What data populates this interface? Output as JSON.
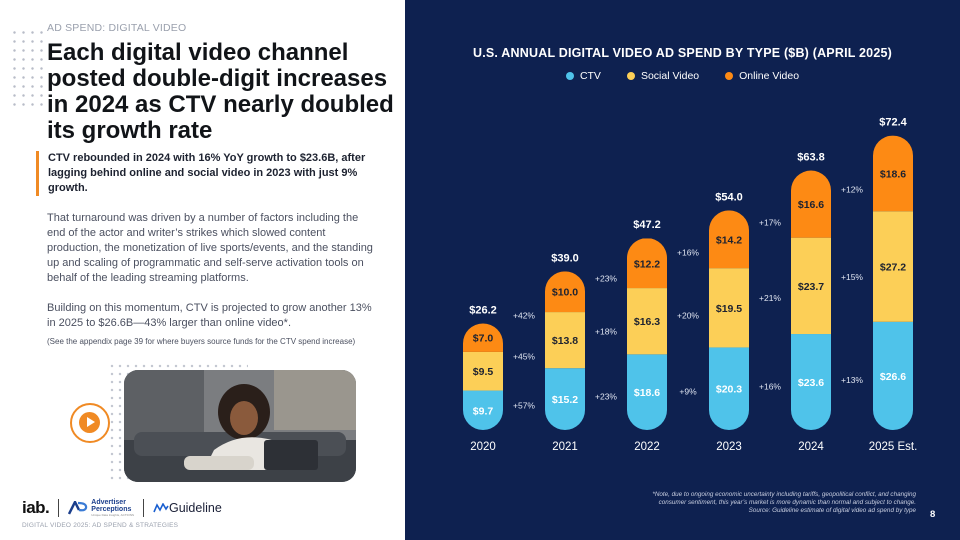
{
  "left": {
    "eyebrow": "AD SPEND: DIGITAL VIDEO",
    "headline": "Each digital video channel posted double-digit increases in 2024 as CTV nearly doubled its growth rate",
    "callout": "CTV rebounded in 2024 with 16% YoY growth to $23.6B, after lagging behind online and social video in 2023 with just 9% growth.",
    "para1": "That turnaround was driven by a number of factors including the end of the actor and writer’s strikes which slowed content production, the monetization of live sports/events, and the standing up and scaling of programmatic and self-serve activation tools on behalf of the leading streaming platforms.",
    "para2": "Building on this momentum, CTV is projected to grow another 13% in 2025 to $26.6B—43% larger than online video*.",
    "note": "(See the appendix page 39 for where buyers source funds for the CTV spend increase)",
    "logos": {
      "iab": "iab.",
      "ap_line1": "Advertiser",
      "ap_line2": "Perceptions",
      "ap_sub": "Unique Data Insights, ACTIONS",
      "guideline": "Guideline"
    },
    "footer": "DIGITAL VIDEO 2025: AD SPEND & STRATEGIES"
  },
  "right": {
    "footnote_1": "*Note, due to ongoing economic uncertainty including tariffs, geopolitical conflict, and changing",
    "footnote_2": "consumer sentiment, this year’s market is more dynamic than normal and subject to change.",
    "footnote_3": "Source: Guideline estimate of digital video ad spend by type",
    "page_number": "8"
  },
  "colors": {
    "ctv": "#4fc3ea",
    "social": "#fccf57",
    "online": "#fd8a14",
    "panel": "#0e2150",
    "accent": "#f08a24"
  },
  "chart_data": {
    "type": "bar",
    "stacked": true,
    "title": "U.S. ANNUAL DIGITAL VIDEO AD SPEND BY TYPE ($B) (APRIL 2025)",
    "categories": [
      "2020",
      "2021",
      "2022",
      "2023",
      "2024",
      "2025 Est."
    ],
    "series": [
      {
        "name": "CTV",
        "values": [
          9.7,
          15.2,
          18.6,
          20.3,
          23.6,
          26.6
        ],
        "labels": [
          "$9.7",
          "$15.2",
          "$18.6",
          "$20.3",
          "$23.6",
          "$26.6"
        ],
        "growth": [
          "+57%",
          "+23%",
          "+9%",
          "+16%",
          "+13%"
        ]
      },
      {
        "name": "Social Video",
        "values": [
          9.5,
          13.8,
          16.3,
          19.5,
          23.7,
          27.2
        ],
        "labels": [
          "$9.5",
          "$13.8",
          "$16.3",
          "$19.5",
          "$23.7",
          "$27.2"
        ],
        "growth": [
          "+45%",
          "+18%",
          "+20%",
          "+21%",
          "+15%"
        ]
      },
      {
        "name": "Online Video",
        "values": [
          7.0,
          10.0,
          12.2,
          14.2,
          16.6,
          18.6
        ],
        "labels": [
          "$7.0",
          "$10.0",
          "$12.2",
          "$14.2",
          "$16.6",
          "$18.6"
        ],
        "growth": [
          "+42%",
          "+23%",
          "+16%",
          "+17%",
          "+12%"
        ]
      }
    ],
    "totals": [
      26.2,
      39.0,
      47.2,
      54.0,
      63.8,
      72.4
    ],
    "total_labels": [
      "$26.2",
      "$39.0",
      "$47.2",
      "$54.0",
      "$63.8",
      "$72.4"
    ],
    "ylim": [
      0,
      75
    ],
    "legend_position": "top-center",
    "grid": false
  }
}
